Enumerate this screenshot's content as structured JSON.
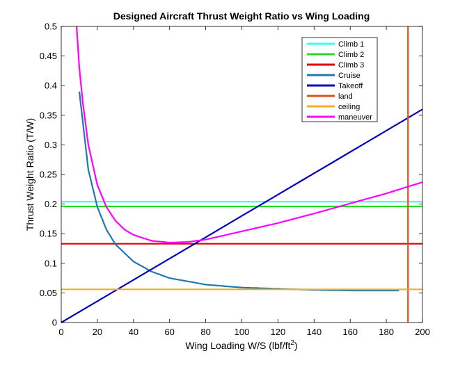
{
  "chart_data": {
    "type": "line",
    "title": "Designed Aircraft Thrust Weight Ratio vs Wing Loading",
    "xlabel": {
      "main": "Wing Loading W/S (lbf/ft",
      "sup": "2",
      "tail": ")"
    },
    "ylabel": "Thrust Weight Ratio (T/W)",
    "xlim": [
      0,
      200
    ],
    "ylim": [
      0,
      0.5
    ],
    "xticks": [
      0,
      20,
      40,
      60,
      80,
      100,
      120,
      140,
      160,
      180,
      200
    ],
    "xtick_labels": [
      "0",
      "20",
      "40",
      "60",
      "80",
      "100",
      "120",
      "140",
      "160",
      "180",
      "200"
    ],
    "yticks": [
      0,
      0.05,
      0.1,
      0.15,
      0.2,
      0.25,
      0.3,
      0.35,
      0.4,
      0.45,
      0.5
    ],
    "ytick_labels": [
      "0",
      "0.05",
      "0.1",
      "0.15",
      "0.2",
      "0.25",
      "0.3",
      "0.35",
      "0.4",
      "0.45",
      "0.5"
    ],
    "grid": false,
    "legend_position": "top-right",
    "series": [
      {
        "name": "Climb 1",
        "color": "#33ffff",
        "kind": "hline",
        "y": 0.204
      },
      {
        "name": "Climb 2",
        "color": "#22dd22",
        "kind": "hline",
        "y": 0.196
      },
      {
        "name": "Climb 3",
        "color": "#dd0000",
        "kind": "hline",
        "y": 0.133
      },
      {
        "name": "Cruise",
        "color": "#1f77b4",
        "x": [
          10,
          15,
          20,
          25,
          30,
          40,
          50,
          60,
          80,
          100,
          120,
          140,
          160,
          187
        ],
        "y": [
          0.39,
          0.258,
          0.195,
          0.157,
          0.132,
          0.103,
          0.086,
          0.075,
          0.064,
          0.059,
          0.057,
          0.055,
          0.054,
          0.054
        ]
      },
      {
        "name": "Takeoff",
        "color": "#0000bb",
        "x": [
          0,
          200
        ],
        "y": [
          0,
          0.36
        ]
      },
      {
        "name": "land",
        "color": "#d95319",
        "kind": "vline",
        "x": 192
      },
      {
        "name": "ceiling",
        "color": "#edb120",
        "kind": "hline",
        "y": 0.056
      },
      {
        "name": "maneuver",
        "color": "#ff00ff",
        "x": [
          8.5,
          10,
          12,
          15,
          20,
          25,
          30,
          35,
          40,
          50,
          60,
          70,
          80,
          90,
          100,
          120,
          140,
          160,
          180,
          200
        ],
        "y": [
          0.5,
          0.43,
          0.37,
          0.3,
          0.232,
          0.195,
          0.172,
          0.157,
          0.148,
          0.138,
          0.135,
          0.136,
          0.14,
          0.147,
          0.154,
          0.168,
          0.184,
          0.201,
          0.218,
          0.237
        ]
      }
    ]
  }
}
